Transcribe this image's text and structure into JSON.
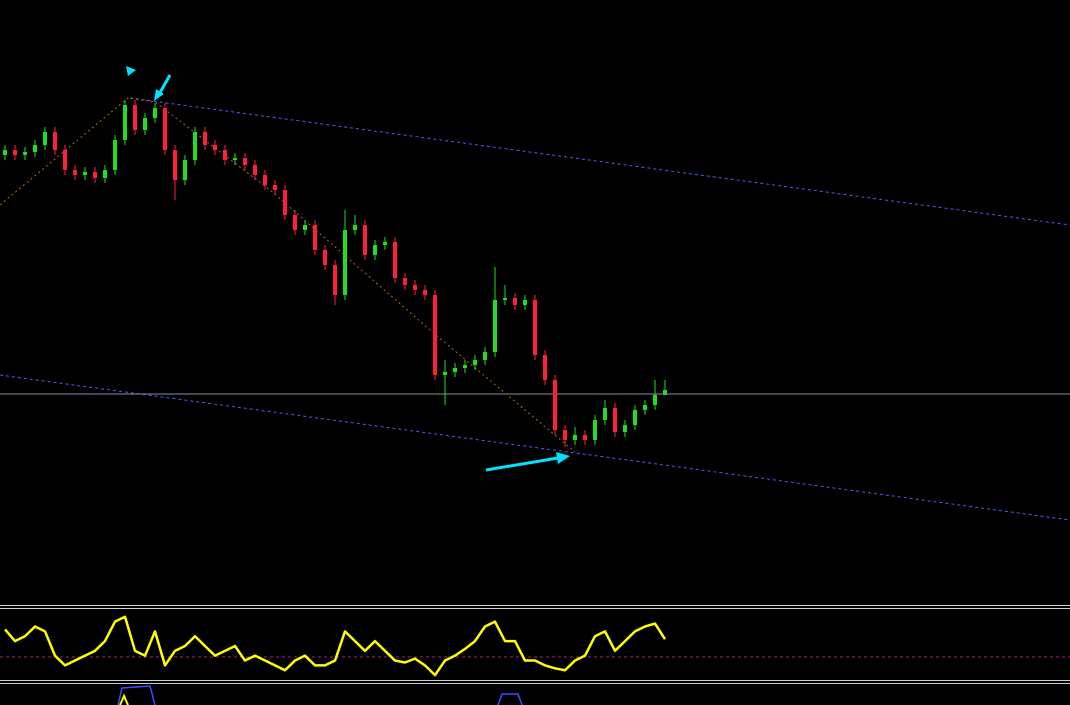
{
  "chart_data": [
    {
      "type": "candlestick",
      "up_color": "#22dd22",
      "down_color": "#ff1f3d",
      "ylim": [
        0,
        605
      ],
      "open": [
        450,
        455,
        450,
        453,
        460,
        473,
        455,
        435,
        430,
        433,
        427,
        435,
        465,
        500,
        475,
        487,
        497,
        455,
        425,
        445,
        473,
        460,
        455,
        445,
        447,
        440,
        430,
        420,
        415,
        390,
        375,
        380,
        355,
        340,
        310,
        375,
        380,
        350,
        360,
        363,
        327,
        320,
        315,
        310,
        230,
        233,
        237,
        240,
        245,
        253,
        305,
        307,
        300,
        305,
        250,
        225,
        175,
        165,
        170,
        165,
        185,
        197,
        173,
        180,
        195,
        200,
        210
      ],
      "high": [
        460,
        460,
        458,
        465,
        478,
        478,
        460,
        440,
        438,
        438,
        440,
        470,
        505,
        505,
        492,
        502,
        502,
        460,
        450,
        478,
        478,
        465,
        460,
        452,
        452,
        445,
        435,
        425,
        420,
        395,
        385,
        385,
        360,
        345,
        395,
        390,
        385,
        365,
        368,
        368,
        332,
        325,
        320,
        315,
        245,
        242,
        245,
        250,
        258,
        338,
        320,
        312,
        310,
        310,
        255,
        230,
        180,
        178,
        175,
        190,
        205,
        202,
        185,
        200,
        205,
        225,
        225
      ],
      "low": [
        445,
        445,
        445,
        448,
        455,
        450,
        430,
        425,
        425,
        422,
        422,
        430,
        460,
        470,
        470,
        482,
        450,
        405,
        420,
        440,
        455,
        450,
        440,
        440,
        435,
        425,
        415,
        410,
        385,
        370,
        370,
        350,
        335,
        300,
        305,
        370,
        345,
        345,
        355,
        322,
        315,
        310,
        305,
        225,
        200,
        228,
        232,
        235,
        240,
        248,
        300,
        295,
        295,
        245,
        220,
        170,
        158,
        160,
        160,
        160,
        180,
        168,
        168,
        175,
        190,
        195,
        210
      ],
      "close": [
        455,
        450,
        453,
        460,
        473,
        455,
        435,
        430,
        433,
        427,
        435,
        465,
        500,
        475,
        487,
        497,
        455,
        425,
        445,
        473,
        460,
        455,
        445,
        447,
        440,
        430,
        420,
        415,
        390,
        375,
        380,
        355,
        340,
        310,
        375,
        380,
        350,
        360,
        363,
        327,
        320,
        315,
        310,
        230,
        233,
        237,
        240,
        245,
        253,
        305,
        307,
        300,
        305,
        250,
        225,
        175,
        165,
        170,
        165,
        185,
        197,
        173,
        180,
        195,
        200,
        210,
        215
      ]
    },
    {
      "type": "line",
      "ylim": [
        0,
        73
      ],
      "series": [
        {
          "color": "#ffff00",
          "values": [
            52,
            40,
            45,
            55,
            50,
            25,
            15,
            20,
            25,
            30,
            40,
            60,
            65,
            30,
            25,
            50,
            15,
            30,
            35,
            45,
            35,
            25,
            30,
            35,
            20,
            25,
            20,
            15,
            10,
            20,
            25,
            15,
            15,
            20,
            50,
            40,
            30,
            40,
            30,
            20,
            18,
            22,
            15,
            5,
            20,
            25,
            32,
            40,
            55,
            60,
            40,
            40,
            20,
            20,
            15,
            12,
            10,
            20,
            25,
            45,
            50,
            30,
            40,
            50,
            55,
            58,
            42
          ]
        }
      ]
    }
  ]
}
